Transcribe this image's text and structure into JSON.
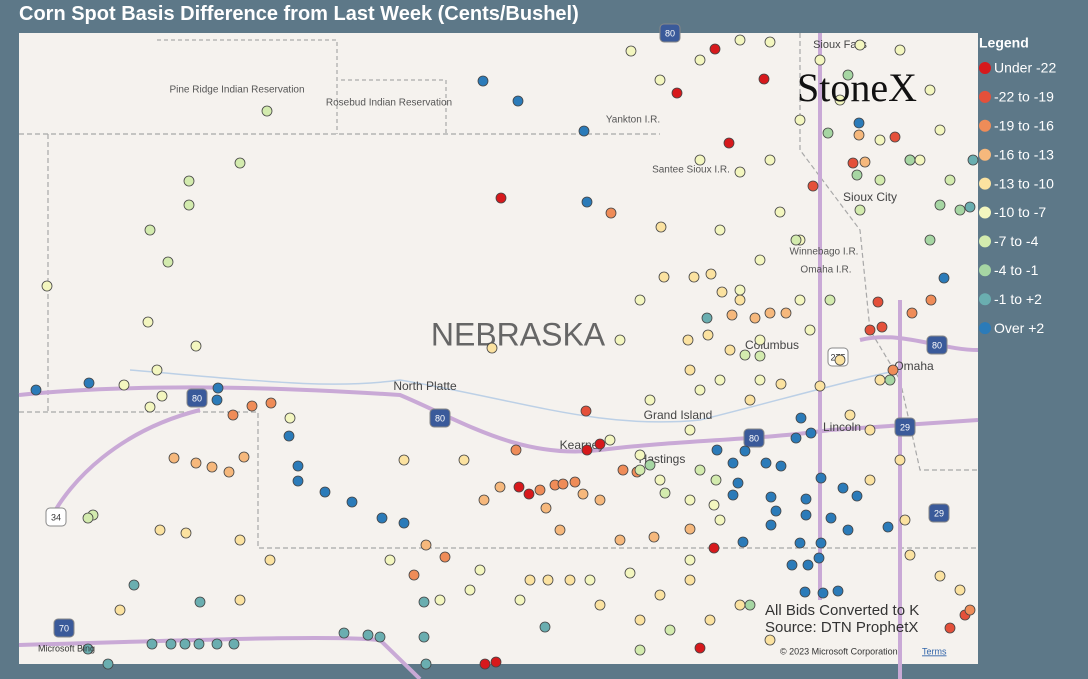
{
  "title": "Corn Spot Basis Difference from Last Week (Cents/Bushel)",
  "legend": {
    "title": "Legend",
    "items": [
      {
        "label": "Under -22",
        "color": "#d7191c"
      },
      {
        "label": "-22 to -19",
        "color": "#e4503a"
      },
      {
        "label": "-19 to -16",
        "color": "#ef8c58"
      },
      {
        "label": "-16 to -13",
        "color": "#f6b87c"
      },
      {
        "label": "-13 to -10",
        "color": "#fbe2a0"
      },
      {
        "label": "-10 to -7",
        "color": "#f3f6bf"
      },
      {
        "label": "-7 to -4",
        "color": "#d3ebae"
      },
      {
        "label": "-4 to -1",
        "color": "#a6d6a3"
      },
      {
        "label": "-1 to +2",
        "color": "#6aaeb0"
      },
      {
        "label": "Over +2",
        "color": "#2b7bb9"
      }
    ]
  },
  "map": {
    "labels": [
      "Pine Ridge Indian Reservation",
      "Rosebud Indian Reservation",
      "Yankton I.R.",
      "Santee Sioux I.R.",
      "Winnebago I.R.",
      "Omaha I.R.",
      "NEBRASKA",
      "North Platte",
      "Grand Island",
      "Kearney",
      "Hastings",
      "Columbus",
      "Omaha",
      "Lincoln",
      "Sioux City",
      "Sioux Falls"
    ],
    "shields": [
      "80",
      "80",
      "80",
      "80",
      "29",
      "29",
      "34",
      "275",
      "70",
      "80"
    ]
  },
  "logo": "StoneX",
  "notes": [
    "All Bids Converted to K",
    "Source: DTN ProphetX"
  ],
  "attribution": {
    "bing": "Microsoft Bing",
    "copyright": "© 2023 Microsoft Corporation",
    "terms": "Terms"
  }
}
